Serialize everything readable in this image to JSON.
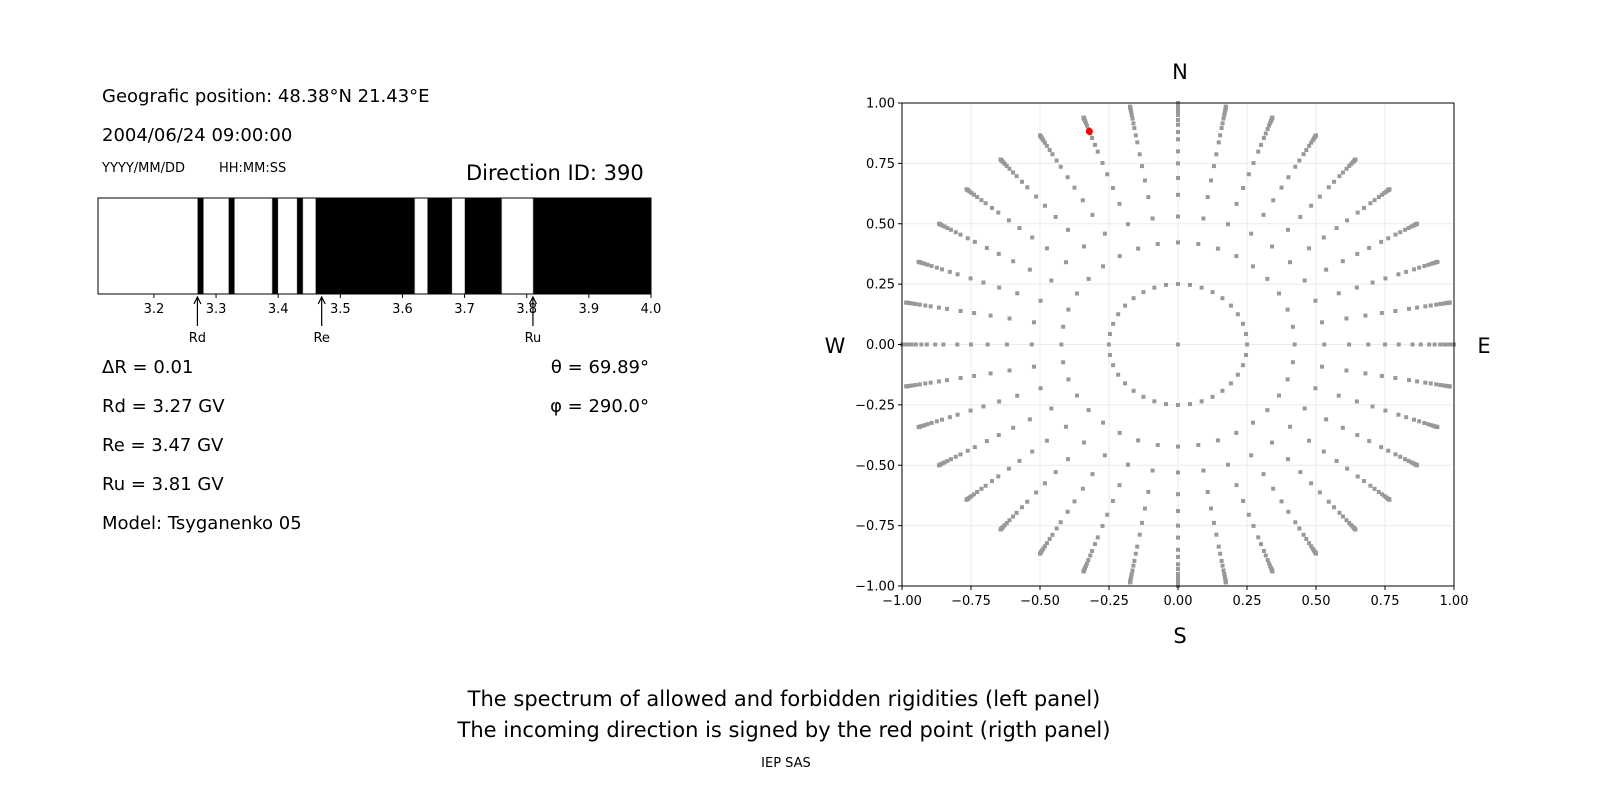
{
  "left_panel": {
    "position": "Geografic position: 48.38°N 21.43°E",
    "datetime": "2004/06/24 09:00:00",
    "date_format": "YYYY/MM/DD",
    "time_format": "HH:MM:SS",
    "direction_id": "Direction ID: 390",
    "dR": "ΔR = 0.01",
    "Rd": "Rd = 3.27 GV",
    "Re": "Re = 3.47 GV",
    "Ru": "Ru = 3.81 GV",
    "model": "Model: Tsyganenko 05",
    "theta": "θ = 69.89°",
    "phi": "φ = 290.0°"
  },
  "chart_data": [
    {
      "type": "bar",
      "subtype": "rigidity-spectrum-strip",
      "xlim": [
        3.11,
        4.0
      ],
      "xticks": [
        "3.2",
        "3.3",
        "3.4",
        "3.5",
        "3.6",
        "3.7",
        "3.8",
        "3.9",
        "4.0"
      ],
      "forbidden_intervals": [
        [
          3.27,
          3.28
        ],
        [
          3.32,
          3.33
        ],
        [
          3.39,
          3.4
        ],
        [
          3.43,
          3.44
        ],
        [
          3.46,
          3.62
        ],
        [
          3.64,
          3.68
        ],
        [
          3.7,
          3.76
        ],
        [
          3.81,
          4.0
        ]
      ],
      "colors": {
        "allowed": "#ffffff",
        "forbidden": "#000000",
        "boundary": "#c8c8c8"
      },
      "markers": [
        {
          "label": "Rd",
          "value": 3.27
        },
        {
          "label": "Re",
          "value": 3.47
        },
        {
          "label": "Ru",
          "value": 3.81
        }
      ]
    },
    {
      "type": "scatter",
      "subtype": "direction-map",
      "xlim": [
        -1,
        1
      ],
      "ylim": [
        -1,
        1
      ],
      "xticks": [
        "−1.00",
        "−0.75",
        "−0.50",
        "−0.25",
        "0.00",
        "0.25",
        "0.50",
        "0.75",
        "1.00"
      ],
      "yticks": [
        "−1.00",
        "−0.75",
        "−0.50",
        "−0.25",
        "0.00",
        "0.25",
        "0.50",
        "0.75",
        "1.00"
      ],
      "grid": true,
      "compass": {
        "N": "N",
        "S": "S",
        "E": "E",
        "W": "W"
      },
      "grid_zenith_deg": [
        0,
        14.5,
        25,
        32,
        38.3,
        43.6,
        48.6,
        53.1,
        58.2,
        61.6,
        65.5,
        68.4,
        71.8,
        74.8,
        77.5,
        80,
        82.5,
        84.5,
        86.5,
        88,
        90
      ],
      "grid_azimuth_step_deg": 10,
      "point_color": "#999999",
      "highlight": {
        "theta_deg": 69.89,
        "phi_deg": 290.0,
        "color": "#ff0000"
      }
    }
  ],
  "caption": {
    "line1": "The spectrum of allowed and forbidden rigidities (left panel)",
    "line2": "The incoming direction is signed by the red point (rigth panel)",
    "credit": "IEP SAS"
  }
}
